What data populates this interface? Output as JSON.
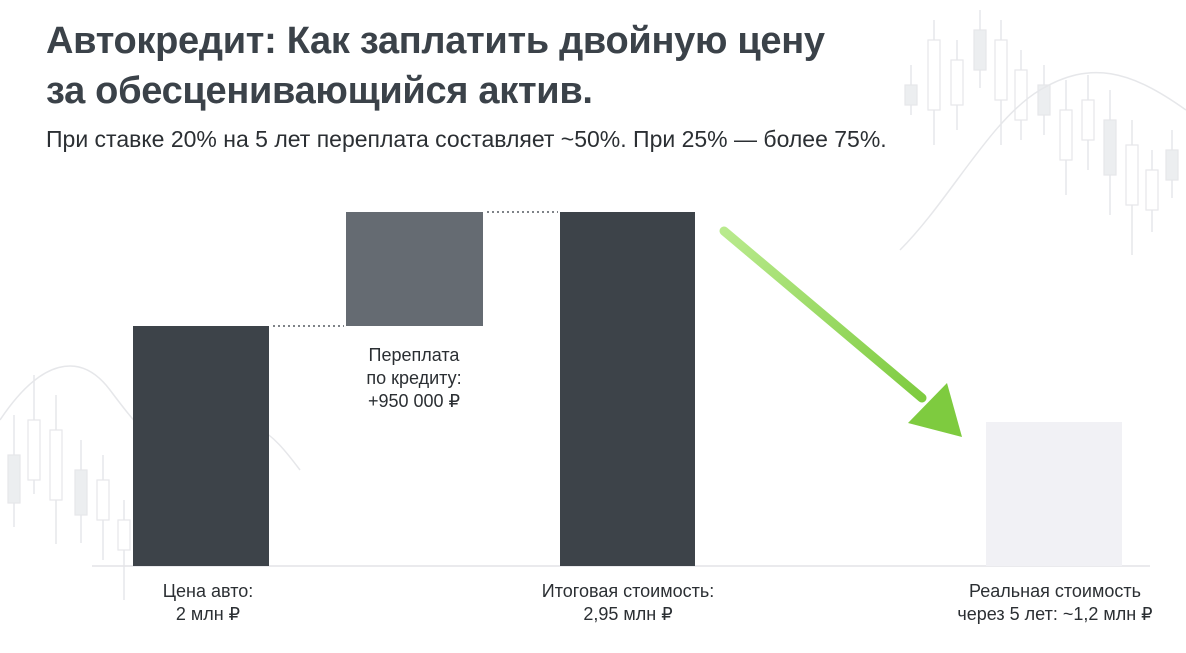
{
  "title_line1": "Автокредит: Как заплатить двойную цену",
  "title_line2": "за обесценивающийся актив.",
  "subtitle": "При ставке 20% на 5 лет переплата составляет ~50%. При 25% — более 75%.",
  "colors": {
    "bar_dark": "#3d4349",
    "bar_mid": "#656b72",
    "bar_light": "#f1f1f5",
    "arrow": "#7ecb3f",
    "connector": "#555a60",
    "background_decor": "#e6e7ea"
  },
  "chart_data": {
    "type": "waterfall",
    "unit": "млн ₽",
    "ylim": [
      0,
      3.3
    ],
    "bars": [
      {
        "name": "price",
        "kind": "total",
        "base": 0,
        "value": 2.0,
        "color": "bar_dark"
      },
      {
        "name": "overpayment",
        "kind": "delta",
        "base": 2.0,
        "value": 0.95,
        "color": "bar_mid"
      },
      {
        "name": "total",
        "kind": "total",
        "base": 0,
        "value": 2.95,
        "color": "bar_dark"
      },
      {
        "name": "real-value",
        "kind": "total",
        "base": 0,
        "value": 1.2,
        "color": "bar_light"
      }
    ],
    "labels": {
      "price": [
        "Цена авто:",
        "2 млн ₽"
      ],
      "overpayment": [
        "Переплата",
        "по кредиту:",
        "+950 000 ₽"
      ],
      "total": [
        "Итоговая стоимость:",
        "2,95 млн ₽"
      ],
      "real_value": [
        "Реальная стоимость",
        "через 5 лет: ~1,2 млн ₽"
      ]
    },
    "annotations": [
      "arrow from total bar to real value bar"
    ],
    "grid": false,
    "legend": "none"
  }
}
